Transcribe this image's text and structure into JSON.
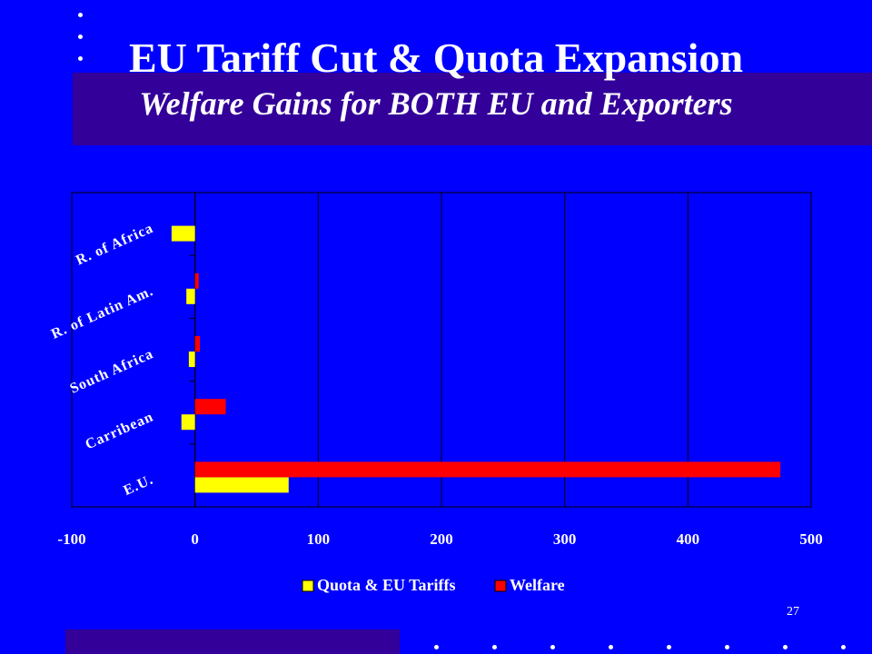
{
  "slide": {
    "title": "EU Tariff Cut & Quota Expansion",
    "subtitle": "Welfare Gains for BOTH EU and Exporters",
    "number": "27"
  },
  "colors": {
    "background": "#0000ff",
    "band": "#330099",
    "series_quota": "#ffff00",
    "series_welfare": "#ff0000",
    "text": "#ffffff"
  },
  "chart_data": {
    "type": "bar",
    "orientation": "horizontal",
    "title": "",
    "xlabel": "",
    "ylabel": "",
    "xlim": [
      -100,
      500
    ],
    "xticks": [
      "-100",
      "0",
      "100",
      "200",
      "300",
      "400",
      "500"
    ],
    "grid": true,
    "legend_position": "bottom",
    "categories": [
      "E.U.",
      "Carribean",
      "South Africa",
      "R. of Latin Am.",
      "R. of Africa"
    ],
    "series": [
      {
        "name": "Quota & EU Tariffs",
        "color": "#ffff00",
        "values": [
          76,
          -11,
          -5,
          -7,
          -19
        ]
      },
      {
        "name": "Welfare",
        "color": "#ff0000",
        "values": [
          475,
          25,
          4,
          3,
          0
        ]
      }
    ]
  }
}
